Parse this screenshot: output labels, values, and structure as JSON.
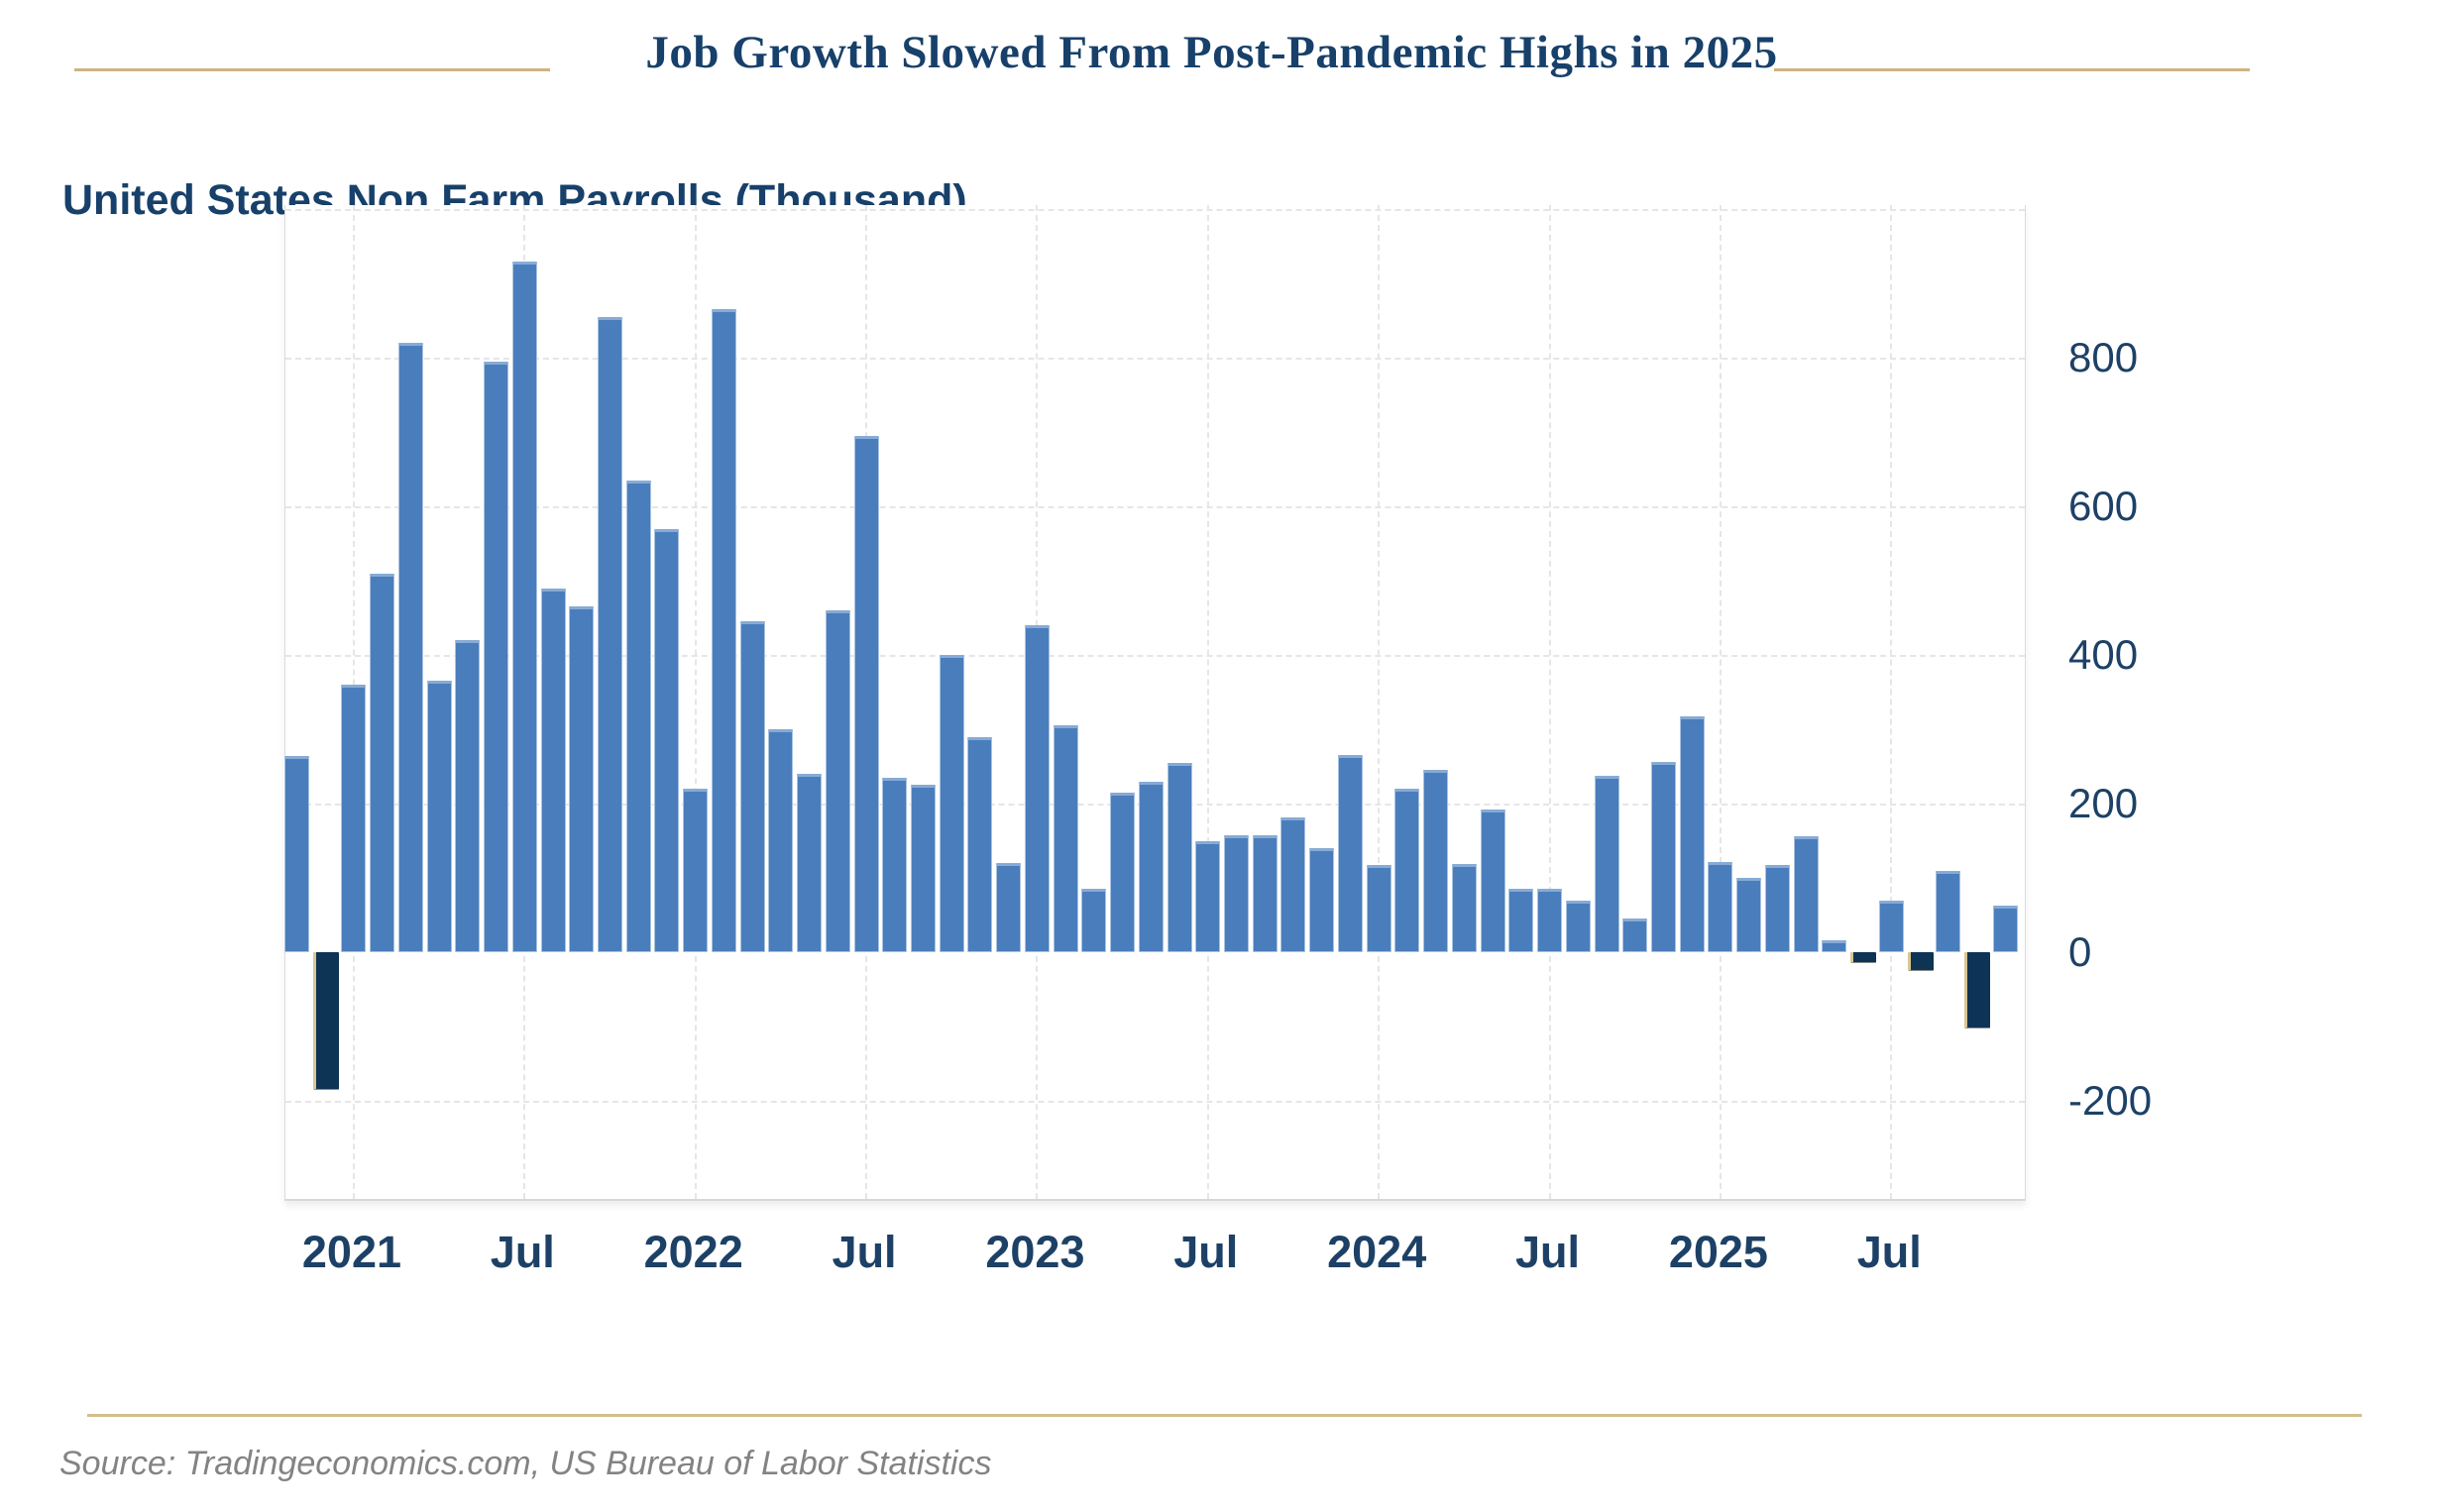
{
  "header": {
    "title": "Job Growth Slowed From Post-Pandemic Highs in 2025",
    "subtitle": "United States Non Farm Payrolls (Thousand)"
  },
  "footer": {
    "source": "Source: Tradingeconomics.com, US Bureau of Labor Statistics"
  },
  "colors": {
    "accent_rule": "#cdb483",
    "title_navy": "#17406a",
    "axis_label": "#1d4166",
    "bar_positive": "#4a7dbc",
    "bar_negative": "#0d3355",
    "source_gray": "#838383"
  },
  "chart_data": {
    "type": "bar",
    "title": "Job Growth Slowed From Post-Pandemic Highs in 2025",
    "subtitle": "United States Non Farm Payrolls (Thousand)",
    "xlabel": "",
    "ylabel": "United States Non Farm Payrolls (Thousand)",
    "ylim": [
      -335,
      1000
    ],
    "grid": true,
    "legend_position": "none",
    "categories": [
      "Nov 2020",
      "Dec 2020",
      "Jan 2021",
      "Feb 2021",
      "Mar 2021",
      "Apr 2021",
      "May 2021",
      "Jun 2021",
      "Jul 2021",
      "Aug 2021",
      "Sep 2021",
      "Oct 2021",
      "Nov 2021",
      "Dec 2021",
      "Jan 2022",
      "Feb 2022",
      "Mar 2022",
      "Apr 2022",
      "May 2022",
      "Jun 2022",
      "Jul 2022",
      "Aug 2022",
      "Sep 2022",
      "Oct 2022",
      "Nov 2022",
      "Dec 2022",
      "Jan 2023",
      "Feb 2023",
      "Mar 2023",
      "Apr 2023",
      "May 2023",
      "Jun 2023",
      "Jul 2023",
      "Aug 2023",
      "Sep 2023",
      "Oct 2023",
      "Nov 2023",
      "Dec 2023",
      "Jan 2024",
      "Feb 2024",
      "Mar 2024",
      "Apr 2024",
      "May 2024",
      "Jun 2024",
      "Jul 2024",
      "Aug 2024",
      "Sep 2024",
      "Oct 2024",
      "Nov 2024",
      "Dec 2024",
      "Jan 2025",
      "Feb 2025",
      "Mar 2025",
      "Apr 2025",
      "May 2025",
      "Jun 2025",
      "Jul 2025",
      "Aug 2025",
      "Sep 2025",
      "Oct 2025",
      "Nov 2025"
    ],
    "values": [
      264,
      -185,
      360,
      510,
      820,
      365,
      420,
      795,
      930,
      490,
      465,
      855,
      635,
      570,
      220,
      865,
      445,
      300,
      240,
      460,
      695,
      235,
      225,
      400,
      290,
      120,
      440,
      305,
      85,
      215,
      230,
      255,
      150,
      157,
      157,
      182,
      140,
      266,
      118,
      220,
      245,
      119,
      192,
      86,
      86,
      70,
      238,
      45,
      256,
      317,
      121,
      100,
      118,
      156,
      16,
      -15,
      70,
      -25,
      109,
      -103,
      63
    ],
    "x_tick_labels": [
      {
        "label": "2021",
        "index": 2
      },
      {
        "label": "Jul",
        "index": 8
      },
      {
        "label": "2022",
        "index": 14
      },
      {
        "label": "Jul",
        "index": 20
      },
      {
        "label": "2023",
        "index": 26
      },
      {
        "label": "Jul",
        "index": 32
      },
      {
        "label": "2024",
        "index": 38
      },
      {
        "label": "Jul",
        "index": 44
      },
      {
        "label": "2025",
        "index": 50
      },
      {
        "label": "Jul",
        "index": 56
      }
    ],
    "y_tick_labels": [
      800,
      600,
      400,
      200,
      0,
      -200
    ],
    "gridlines_at": [
      1000,
      800,
      600,
      400,
      200,
      -200
    ]
  }
}
